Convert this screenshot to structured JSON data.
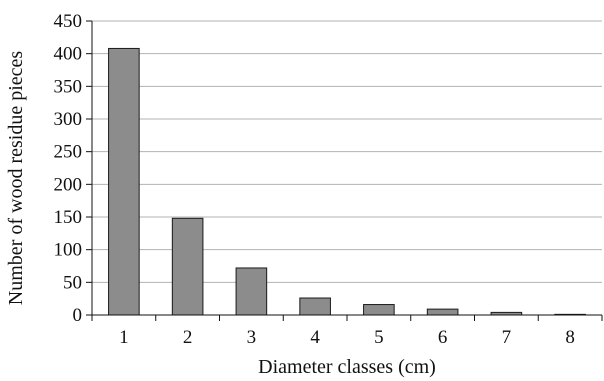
{
  "chart_data": {
    "type": "bar",
    "title": "",
    "xlabel": "Diameter classes (cm)",
    "ylabel": "Number of wood residue pieces",
    "categories": [
      "1",
      "2",
      "3",
      "4",
      "5",
      "6",
      "7",
      "8"
    ],
    "values": [
      408,
      148,
      72,
      26,
      16,
      9,
      4,
      1
    ],
    "ylim": [
      0,
      450
    ],
    "yticks": [
      0,
      50,
      100,
      150,
      200,
      250,
      300,
      350,
      400,
      450
    ],
    "grid": true,
    "legend": "none",
    "colors": {
      "bar_fill": "#8c8c8c",
      "bar_stroke": "#1a1a1a",
      "grid": "#b3b3b3",
      "axis": "#111111"
    }
  }
}
